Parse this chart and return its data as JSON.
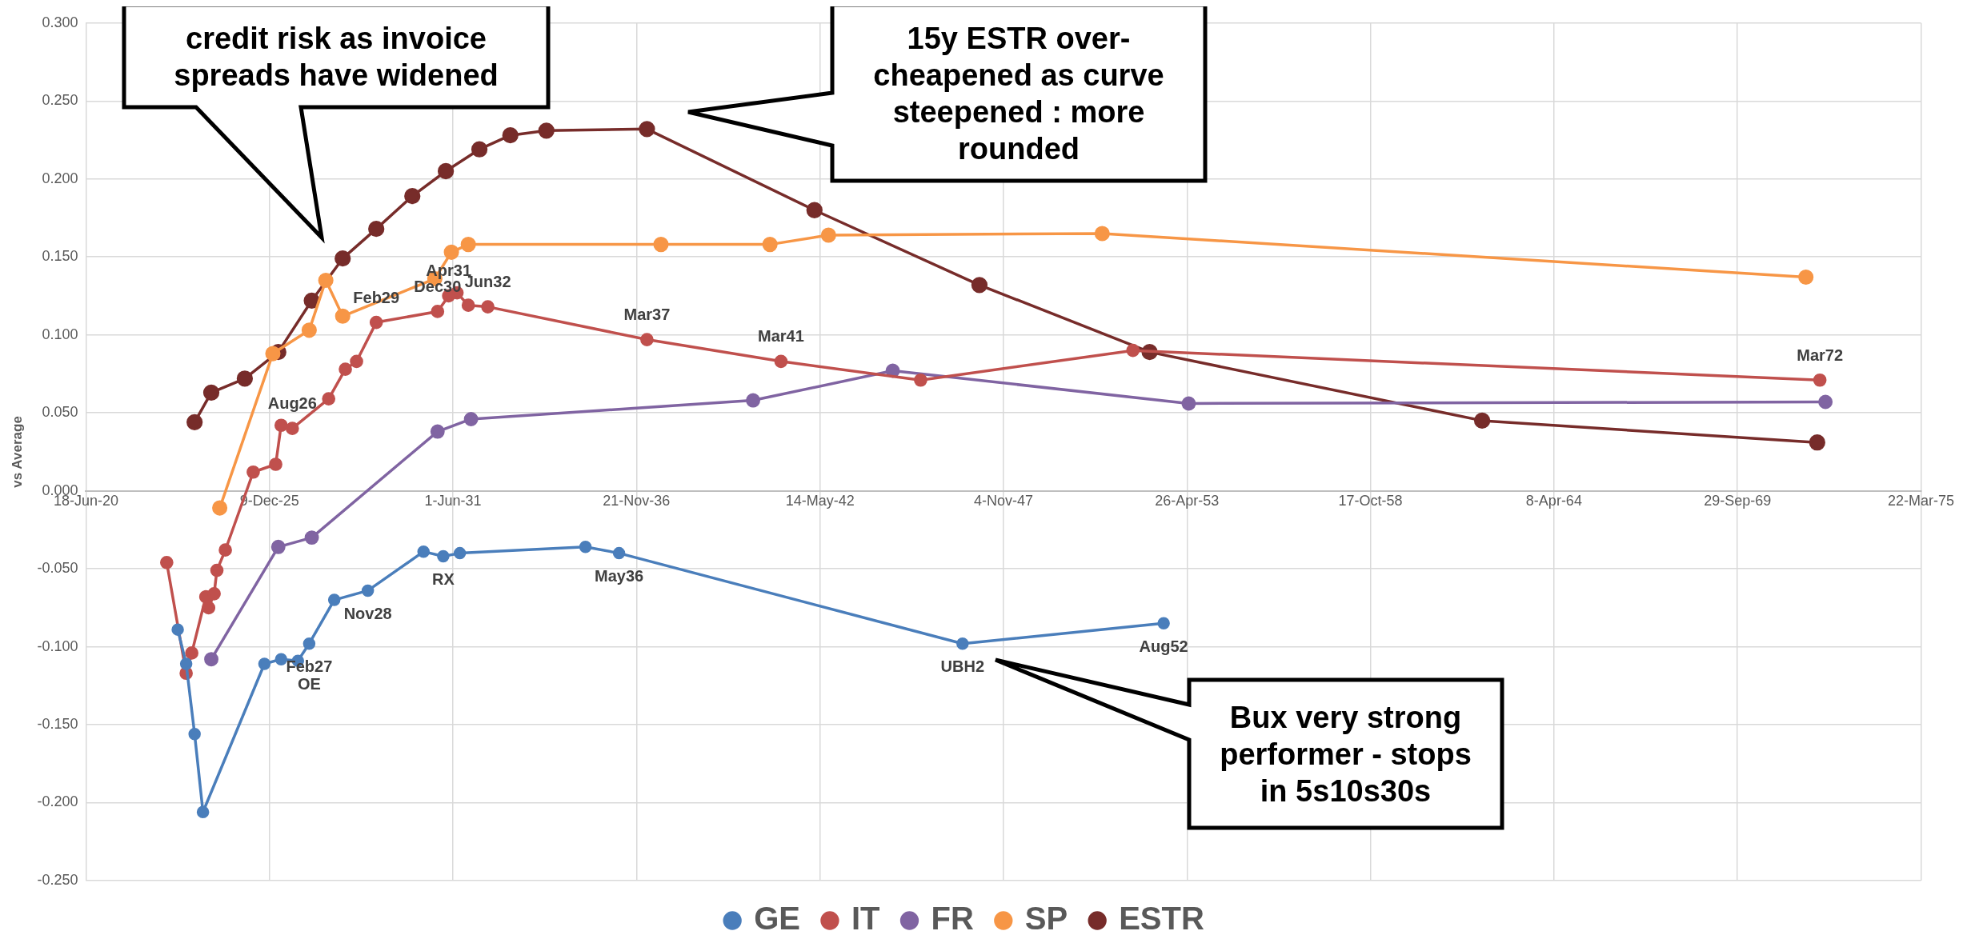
{
  "chart_data": {
    "type": "line",
    "ylabel": "vs Average",
    "legend": "bottom",
    "grid": true,
    "marker": "circle",
    "line_style": "solid",
    "xlim": [
      "2020-06-18",
      "2075-03-22"
    ],
    "xticks": [
      {
        "value": "2020-06-18",
        "label": "18-Jun-20"
      },
      {
        "value": "2025-12-09",
        "label": "9-Dec-25"
      },
      {
        "value": "2031-06-01",
        "label": "1-Jun-31"
      },
      {
        "value": "2036-11-21",
        "label": "21-Nov-36"
      },
      {
        "value": "2042-05-14",
        "label": "14-May-42"
      },
      {
        "value": "2047-11-04",
        "label": "4-Nov-47"
      },
      {
        "value": "2053-04-26",
        "label": "26-Apr-53"
      },
      {
        "value": "2058-10-17",
        "label": "17-Oct-58"
      },
      {
        "value": "2064-04-08",
        "label": "8-Apr-64"
      },
      {
        "value": "2069-09-29",
        "label": "29-Sep-69"
      },
      {
        "value": "2075-03-22",
        "label": "22-Mar-75"
      }
    ],
    "ylim": [
      -0.25,
      0.3
    ],
    "yticks": [
      {
        "value": -0.25,
        "label": "-0.250"
      },
      {
        "value": -0.2,
        "label": "-0.200"
      },
      {
        "value": -0.15,
        "label": "-0.150"
      },
      {
        "value": -0.1,
        "label": "-0.100"
      },
      {
        "value": -0.05,
        "label": "-0.050"
      },
      {
        "value": 0,
        "label": "0.000"
      },
      {
        "value": 0.05,
        "label": "0.050"
      },
      {
        "value": 0.1,
        "label": "0.100"
      },
      {
        "value": 0.15,
        "label": "0.150"
      },
      {
        "value": 0.2,
        "label": "0.200"
      },
      {
        "value": 0.25,
        "label": "0.250"
      },
      {
        "value": 0.3,
        "label": "0.300"
      }
    ],
    "series": [
      {
        "name": "GE",
        "color": "#4a7ebb",
        "x": [
          "2023-03",
          "2023-06",
          "2023-09",
          "2023-12",
          "2025-10",
          "2026-04",
          "2026-10",
          "2027-02",
          "2027-11",
          "2028-11",
          "2030-07",
          "2031-02",
          "2031-08",
          "2035-05",
          "2036-05",
          "2046-08",
          "2052-08"
        ],
        "values": [
          -0.089,
          -0.111,
          -0.156,
          -0.206,
          -0.111,
          -0.108,
          -0.109,
          -0.098,
          -0.07,
          -0.064,
          -0.039,
          -0.042,
          -0.04,
          -0.036,
          -0.04,
          -0.098,
          -0.085
        ]
      },
      {
        "name": "IT",
        "color": "#c0504d",
        "x": [
          "2022-11",
          "2023-06",
          "2023-08",
          "2024-01",
          "2024-02",
          "2024-04",
          "2024-05",
          "2024-08",
          "2025-06",
          "2026-02",
          "2026-04",
          "2026-08",
          "2027-09",
          "2028-03",
          "2028-07",
          "2029-02",
          "2030-12",
          "2031-04",
          "2031-07",
          "2031-11",
          "2032-06",
          "2037-03",
          "2041-03",
          "2045-05",
          "2051-09",
          "2072-03"
        ],
        "values": [
          -0.046,
          -0.117,
          -0.104,
          -0.068,
          -0.075,
          -0.066,
          -0.051,
          -0.038,
          0.012,
          0.017,
          0.042,
          0.04,
          0.059,
          0.078,
          0.083,
          0.108,
          0.115,
          0.125,
          0.127,
          0.119,
          0.118,
          0.097,
          0.083,
          0.071,
          0.09,
          0.071
        ]
      },
      {
        "name": "FR",
        "color": "#8064a2",
        "x": [
          "2024-03",
          "2026-03",
          "2027-03",
          "2030-12",
          "2031-12",
          "2040-05",
          "2044-07",
          "2053-05",
          "2072-05"
        ],
        "values": [
          -0.108,
          -0.036,
          -0.03,
          0.038,
          0.046,
          0.058,
          0.077,
          0.056,
          0.057
        ]
      },
      {
        "name": "SP",
        "color": "#f79646",
        "x": [
          "2024-06",
          "2026-01",
          "2027-02",
          "2027-08",
          "2028-02",
          "2030-11",
          "2031-05",
          "2031-11",
          "2037-08",
          "2040-11",
          "2042-08",
          "2050-10",
          "2071-10"
        ],
        "values": [
          -0.011,
          0.088,
          0.103,
          0.135,
          0.112,
          0.136,
          0.153,
          0.158,
          0.158,
          0.158,
          0.164,
          0.165,
          0.137
        ]
      },
      {
        "name": "ESTR",
        "color": "#772c2a",
        "x": [
          "2023-09",
          "2024-03",
          "2025-03",
          "2026-03",
          "2027-03",
          "2028-02",
          "2029-02",
          "2030-03",
          "2031-03",
          "2032-03",
          "2033-02",
          "2034-03",
          "2037-03",
          "2042-03",
          "2047-02",
          "2052-03",
          "2062-02",
          "2072-02"
        ],
        "values": [
          0.044,
          0.063,
          0.072,
          0.089,
          0.122,
          0.149,
          0.168,
          0.189,
          0.205,
          0.219,
          0.228,
          0.231,
          0.232,
          0.18,
          0.132,
          0.089,
          0.045,
          0.031
        ]
      }
    ],
    "annotations": [
      "credit risk as invoice spreads have widened",
      "15y ESTR over-cheapened as curve steepened : more rounded",
      "Bux very strong performer - stops in 5s10s30s",
      {
        "text": "Aug26",
        "x": "2026-08",
        "y": 0.04
      },
      {
        "text": "Feb29",
        "x": "2029-02",
        "y": 0.108
      },
      {
        "text": "Dec30",
        "x": "2030-12",
        "y": 0.115
      },
      {
        "text": "Apr31",
        "x": "2031-04",
        "y": 0.125
      },
      {
        "text": "Jun32",
        "x": "2032-06",
        "y": 0.118
      },
      {
        "text": "Mar37",
        "x": "2037-03",
        "y": 0.097
      },
      {
        "text": "Mar41",
        "x": "2041-03",
        "y": 0.083
      },
      {
        "text": "Mar72",
        "x": "2072-03",
        "y": 0.071
      },
      {
        "text": "Feb27",
        "x": "2027-02",
        "y": -0.098
      },
      {
        "text": "OE",
        "x": "2027-02",
        "y": -0.098
      },
      {
        "text": "Nov28",
        "x": "2028-11",
        "y": -0.064
      },
      {
        "text": "RX",
        "x": "2031-02",
        "y": -0.042
      },
      {
        "text": "May36",
        "x": "2036-05",
        "y": -0.04
      },
      {
        "text": "UBH2",
        "x": "2046-08",
        "y": -0.098
      },
      {
        "text": "Aug52",
        "x": "2052-08",
        "y": -0.085
      }
    ]
  }
}
